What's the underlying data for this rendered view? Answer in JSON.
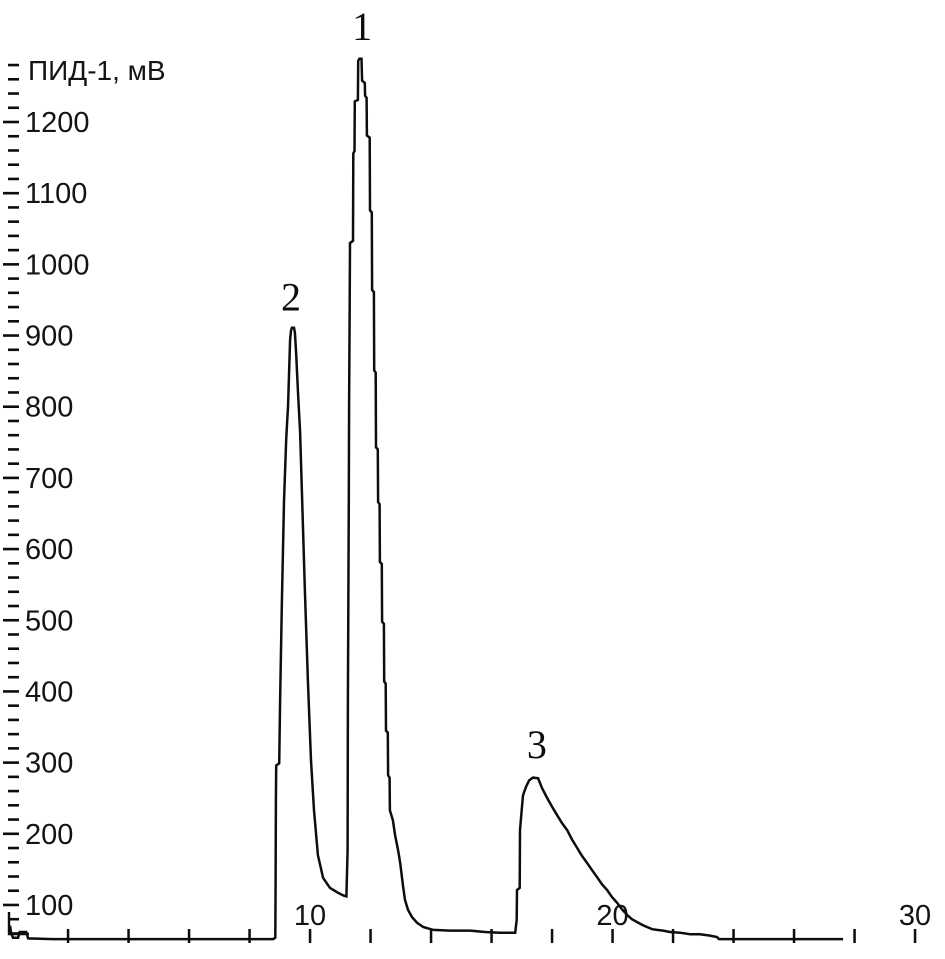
{
  "colors": {
    "line": "#0d0d0d",
    "text": "#141414",
    "background": "#ffffff"
  },
  "chart_data": {
    "type": "line",
    "title": "",
    "ylabel": "ПИД-1, мВ",
    "xlabel": "",
    "y_axis": {
      "label": "ПИД-1, мВ",
      "unit": "мВ",
      "major_tick_labels": [
        100,
        200,
        300,
        400,
        500,
        600,
        700,
        800,
        900,
        1000,
        1100,
        1200
      ],
      "major_step": 100,
      "minor_step": 20,
      "tick_range": [
        60,
        1280
      ],
      "domain": [
        24.1,
        1371.4
      ]
    },
    "x_axis": {
      "labeled_ticks": [
        "10",
        "20",
        "30"
      ],
      "labeled_tick_values": [
        10,
        20,
        30
      ],
      "tick_step": 2,
      "tick_range": [
        2,
        30
      ],
      "domain": [
        -0.25,
        30.99
      ]
    },
    "baseline_mv": 52,
    "peaks": [
      {
        "label": "1",
        "retention_time": 11.65,
        "apex_mv": 1289,
        "label_pos": {
          "t": 11.72,
          "mv": 1335
        }
      },
      {
        "label": "2",
        "retention_time": 9.43,
        "apex_mv": 911,
        "label_pos": {
          "t": 9.37,
          "mv": 955
        }
      },
      {
        "label": "3",
        "retention_time": 17.45,
        "apex_mv": 279,
        "label_pos": {
          "t": 17.5,
          "mv": 326
        }
      }
    ],
    "trace": [
      [
        0.08,
        71
      ],
      [
        0.12,
        60
      ],
      [
        0.18,
        54
      ],
      [
        0.35,
        54
      ],
      [
        0.4,
        62
      ],
      [
        0.62,
        62
      ],
      [
        0.68,
        53
      ],
      [
        1.5,
        52
      ],
      [
        4.0,
        52
      ],
      [
        6.5,
        52
      ],
      [
        8.78,
        52
      ],
      [
        8.85,
        54
      ],
      [
        8.86,
        130
      ],
      [
        8.87,
        247
      ],
      [
        8.88,
        296
      ],
      [
        8.98,
        299
      ],
      [
        9.01,
        387
      ],
      [
        9.07,
        527
      ],
      [
        9.14,
        667
      ],
      [
        9.21,
        754
      ],
      [
        9.24,
        778
      ],
      [
        9.27,
        799
      ],
      [
        9.34,
        894
      ],
      [
        9.37,
        907
      ],
      [
        9.4,
        911
      ],
      [
        9.47,
        911
      ],
      [
        9.5,
        904
      ],
      [
        9.54,
        876
      ],
      [
        9.6,
        820
      ],
      [
        9.67,
        764
      ],
      [
        9.74,
        667
      ],
      [
        9.83,
        541
      ],
      [
        9.93,
        415
      ],
      [
        10.03,
        303
      ],
      [
        10.13,
        233
      ],
      [
        10.26,
        170
      ],
      [
        10.43,
        138
      ],
      [
        10.66,
        124
      ],
      [
        10.93,
        117
      ],
      [
        11.12,
        113
      ],
      [
        11.2,
        112
      ],
      [
        11.24,
        177
      ],
      [
        11.25,
        387
      ],
      [
        11.28,
        667
      ],
      [
        11.29,
        806
      ],
      [
        11.31,
        946
      ],
      [
        11.32,
        1030
      ],
      [
        11.42,
        1033
      ],
      [
        11.43,
        1156
      ],
      [
        11.47,
        1159
      ],
      [
        11.48,
        1229
      ],
      [
        11.58,
        1231
      ],
      [
        11.59,
        1286
      ],
      [
        11.63,
        1289
      ],
      [
        11.7,
        1289
      ],
      [
        11.72,
        1258
      ],
      [
        11.81,
        1255
      ],
      [
        11.82,
        1237
      ],
      [
        11.87,
        1234
      ],
      [
        11.88,
        1181
      ],
      [
        11.97,
        1178
      ],
      [
        11.98,
        1076
      ],
      [
        12.04,
        1073
      ],
      [
        12.05,
        964
      ],
      [
        12.11,
        961
      ],
      [
        12.12,
        851
      ],
      [
        12.17,
        848
      ],
      [
        12.18,
        743
      ],
      [
        12.24,
        740
      ],
      [
        12.25,
        666
      ],
      [
        12.3,
        663
      ],
      [
        12.31,
        582
      ],
      [
        12.37,
        579
      ],
      [
        12.38,
        498
      ],
      [
        12.44,
        495
      ],
      [
        12.45,
        414
      ],
      [
        12.5,
        411
      ],
      [
        12.51,
        345
      ],
      [
        12.57,
        342
      ],
      [
        12.58,
        282
      ],
      [
        12.63,
        279
      ],
      [
        12.64,
        233
      ],
      [
        12.74,
        219
      ],
      [
        12.81,
        198
      ],
      [
        12.91,
        177
      ],
      [
        12.98,
        159
      ],
      [
        13.07,
        128
      ],
      [
        13.14,
        107
      ],
      [
        13.24,
        93
      ],
      [
        13.37,
        83
      ],
      [
        13.54,
        75
      ],
      [
        13.74,
        69
      ],
      [
        14.07,
        65
      ],
      [
        14.63,
        64
      ],
      [
        15.29,
        64
      ],
      [
        15.79,
        62
      ],
      [
        16.28,
        61
      ],
      [
        16.78,
        61
      ],
      [
        16.83,
        79
      ],
      [
        16.84,
        121
      ],
      [
        16.93,
        124
      ],
      [
        16.94,
        205
      ],
      [
        17.01,
        240
      ],
      [
        17.04,
        254
      ],
      [
        17.14,
        266
      ],
      [
        17.24,
        275
      ],
      [
        17.37,
        279
      ],
      [
        17.54,
        278
      ],
      [
        17.67,
        264
      ],
      [
        17.83,
        251
      ],
      [
        18.0,
        238
      ],
      [
        18.17,
        226
      ],
      [
        18.33,
        215
      ],
      [
        18.5,
        205
      ],
      [
        18.66,
        192
      ],
      [
        18.83,
        180
      ],
      [
        18.99,
        169
      ],
      [
        19.16,
        159
      ],
      [
        19.32,
        149
      ],
      [
        19.49,
        139
      ],
      [
        19.65,
        129
      ],
      [
        19.82,
        121
      ],
      [
        19.98,
        111
      ],
      [
        20.15,
        103
      ],
      [
        20.31,
        94
      ],
      [
        20.48,
        86
      ],
      [
        20.64,
        80
      ],
      [
        20.81,
        76
      ],
      [
        20.98,
        72
      ],
      [
        21.14,
        69
      ],
      [
        21.31,
        66
      ],
      [
        21.47,
        65
      ],
      [
        21.67,
        64
      ],
      [
        21.9,
        62
      ],
      [
        22.23,
        61
      ],
      [
        22.56,
        59
      ],
      [
        22.89,
        59
      ],
      [
        23.22,
        57
      ],
      [
        23.45,
        55
      ],
      [
        23.52,
        52
      ],
      [
        24.21,
        52
      ],
      [
        25.5,
        52
      ],
      [
        26.6,
        52
      ],
      [
        27.62,
        52
      ]
    ]
  }
}
